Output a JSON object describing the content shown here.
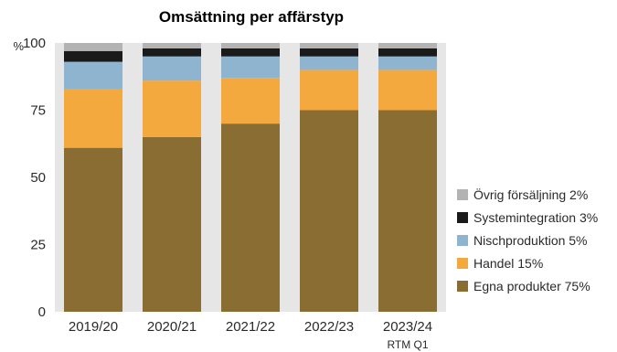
{
  "chart_data": {
    "type": "bar",
    "stacked": true,
    "title": "Omsättning per affärstyp",
    "y_unit": "%",
    "ylim": [
      0,
      100
    ],
    "yticks": [
      0,
      25,
      50,
      75,
      100
    ],
    "categories": [
      "2019/20",
      "2020/21",
      "2021/22",
      "2022/23",
      "2023/24"
    ],
    "category_sublabels": [
      "",
      "",
      "",
      "",
      "RTM Q1"
    ],
    "series": [
      {
        "name": "Egna produkter 75%",
        "color": "#8a6d33",
        "values": [
          61,
          65,
          70,
          75,
          75
        ]
      },
      {
        "name": "Handel 15%",
        "color": "#f4a93f",
        "values": [
          22,
          21,
          17,
          15,
          15
        ]
      },
      {
        "name": "Nischproduktion 5%",
        "color": "#8fb4cf",
        "values": [
          10,
          9,
          8,
          5,
          5
        ]
      },
      {
        "name": "Systemintegration 3%",
        "color": "#1a1a1a",
        "values": [
          4,
          3,
          3,
          3,
          3
        ]
      },
      {
        "name": "Övrig försäljning 2%",
        "color": "#b3b3b3",
        "values": [
          3,
          2,
          2,
          2,
          2
        ]
      }
    ],
    "plot_background": "#e6e6e6",
    "legend_position": "right",
    "grid": false
  }
}
